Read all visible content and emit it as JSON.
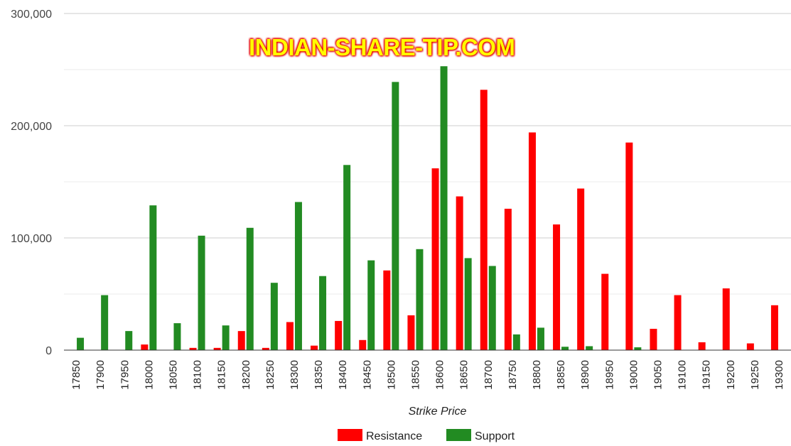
{
  "watermark": "INDIAN-SHARE-TIP.COM",
  "chart_data": {
    "type": "bar",
    "title": "",
    "xlabel": "Strike Price",
    "ylabel": "",
    "ylim": [
      0,
      300000
    ],
    "yticks": [
      0,
      100000,
      200000,
      300000
    ],
    "ytick_labels": [
      "0",
      "100,000",
      "200,000",
      "300,000"
    ],
    "grid": true,
    "legend_position": "bottom",
    "categories": [
      "17850",
      "17900",
      "17950",
      "18000",
      "18050",
      "18100",
      "18150",
      "18200",
      "18250",
      "18300",
      "18350",
      "18400",
      "18450",
      "18500",
      "18550",
      "18600",
      "18650",
      "18700",
      "18750",
      "18800",
      "18850",
      "18900",
      "18950",
      "19000",
      "19050",
      "19100",
      "19150",
      "19200",
      "19250",
      "19300"
    ],
    "series": [
      {
        "name": "Resistance",
        "color": "#ff0000",
        "values": [
          0,
          0,
          0,
          5000,
          0,
          2000,
          2000,
          17000,
          2000,
          25000,
          4000,
          26000,
          9000,
          71000,
          31000,
          162000,
          137000,
          232000,
          126000,
          194000,
          112000,
          144000,
          68000,
          185000,
          19000,
          49000,
          7000,
          55000,
          6000,
          40000
        ]
      },
      {
        "name": "Support",
        "color": "#228b22",
        "values": [
          11000,
          49000,
          17000,
          129000,
          24000,
          102000,
          22000,
          109000,
          60000,
          132000,
          66000,
          165000,
          80000,
          239000,
          90000,
          253000,
          82000,
          75000,
          14000,
          20000,
          3000,
          3500,
          0,
          2500,
          0,
          0,
          0,
          0,
          0,
          0
        ]
      }
    ]
  }
}
